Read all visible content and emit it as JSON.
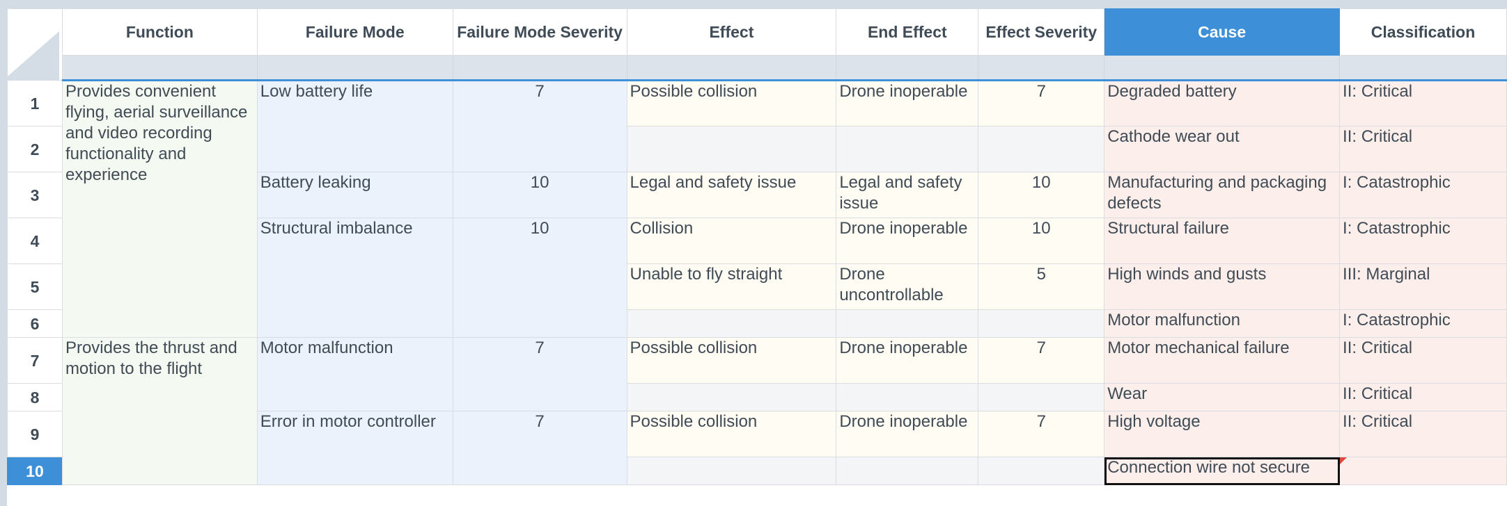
{
  "columns": [
    "Function",
    "Failure Mode",
    "Failure Mode Severity",
    "Effect",
    "End Effect",
    "Effect Severity",
    "Cause",
    "Classification"
  ],
  "active_column": "Cause",
  "row_numbers": [
    "1",
    "2",
    "3",
    "4",
    "5",
    "6",
    "7",
    "8",
    "9",
    "10"
  ],
  "active_row": "10",
  "functions": [
    "Provides convenient flying, aerial surveillance and video recording functionality and experience",
    "Provides the thrust and motion to the flight"
  ],
  "failure_modes": [
    {
      "name": "Low battery life",
      "severity": "7"
    },
    {
      "name": "Battery leaking",
      "severity": "10"
    },
    {
      "name": "Structural imbalance",
      "severity": "10"
    },
    {
      "name": "Motor malfunction",
      "severity": "7"
    },
    {
      "name": "Error in motor controller",
      "severity": "7"
    }
  ],
  "rows": [
    {
      "effect": "Possible collision",
      "end_effect": "Drone inoperable",
      "effect_severity": "7",
      "cause": "Degraded battery",
      "classification": "II: Critical"
    },
    {
      "effect": "",
      "end_effect": "",
      "effect_severity": "",
      "cause": "Cathode wear out",
      "classification": "II: Critical"
    },
    {
      "effect": "Legal and safety issue",
      "end_effect": "Legal and safety issue",
      "effect_severity": "10",
      "cause": "Manufacturing and packaging defects",
      "classification": "I: Catastrophic"
    },
    {
      "effect": "Collision",
      "end_effect": "Drone inoperable",
      "effect_severity": "10",
      "cause": "Structural failure",
      "classification": "I: Catastrophic"
    },
    {
      "effect": "Unable to fly straight",
      "end_effect": "Drone uncontrollable",
      "effect_severity": "5",
      "cause": "High winds and gusts",
      "classification": "III: Marginal"
    },
    {
      "effect": "",
      "end_effect": "",
      "effect_severity": "",
      "cause": "Motor malfunction",
      "classification": "I: Catastrophic"
    },
    {
      "effect": "Possible collision",
      "end_effect": "Drone inoperable",
      "effect_severity": "7",
      "cause": "Motor mechanical failure",
      "classification": "II: Critical"
    },
    {
      "effect": "",
      "end_effect": "",
      "effect_severity": "",
      "cause": "Wear",
      "classification": "II: Critical"
    },
    {
      "effect": "Possible collision",
      "end_effect": "Drone inoperable",
      "effect_severity": "7",
      "cause": "High voltage",
      "classification": "II: Critical"
    },
    {
      "effect": "",
      "end_effect": "",
      "effect_severity": "",
      "cause": "Connection wire not secure",
      "classification": ""
    }
  ],
  "colors": {
    "accent": "#3d8fd8",
    "function_fill": "#f4f9f1",
    "failure_mode_fill": "#ebf2fb",
    "effect_fill": "#fffcf4",
    "cause_fill": "#fcefeb",
    "empty_fill": "#f4f5f6"
  }
}
